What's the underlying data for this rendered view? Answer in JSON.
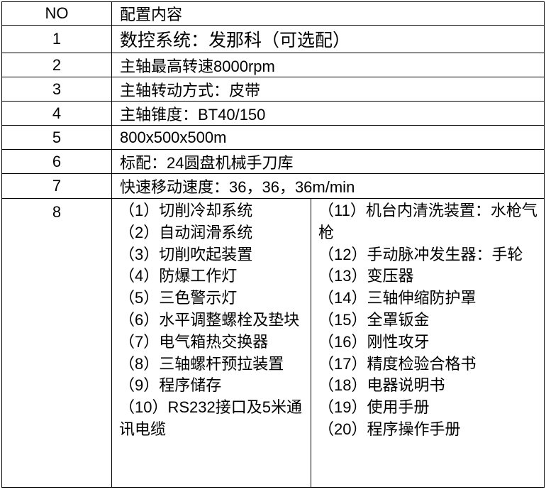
{
  "header": {
    "no": "NO",
    "content": "配置内容"
  },
  "rows": [
    {
      "no": "1",
      "content": "数控系统：发那科（可选配）"
    },
    {
      "no": "2",
      "content": "主轴最高转速8000rpm"
    },
    {
      "no": "3",
      "content": "主轴转动方式：皮带"
    },
    {
      "no": "4",
      "content": "主轴锥度：BT40/150"
    },
    {
      "no": "5",
      "content": "800x500x500m"
    },
    {
      "no": "6",
      "content": "标配：24圆盘机械手刀库"
    },
    {
      "no": "7",
      "content": "快速移动速度：36，36，36m/min"
    },
    {
      "no": "8"
    }
  ],
  "config_left": [
    "（1）切削冷却系统",
    "（2）自动润滑系统",
    "（3）切削吹起装置",
    "（4）防爆工作灯",
    "（5）三色警示灯",
    "（6）水平调整螺栓及垫块",
    "（7）电气箱热交换器",
    "（8）三轴螺杆预拉装置",
    "（9）程序储存",
    "（10）RS232接口及5米通讯电缆"
  ],
  "config_right": [
    "（11）机台内清洗装置：水枪气枪",
    "（12）手动脉冲发生器：手轮",
    "（13）变压器",
    "（14）三轴伸缩防护罩",
    "（15）全罩钣金",
    "（16）刚性攻牙",
    "（17）精度检验合格书",
    "（18）电器说明书",
    "（19）使用手册",
    "（20）程序操作手册"
  ]
}
